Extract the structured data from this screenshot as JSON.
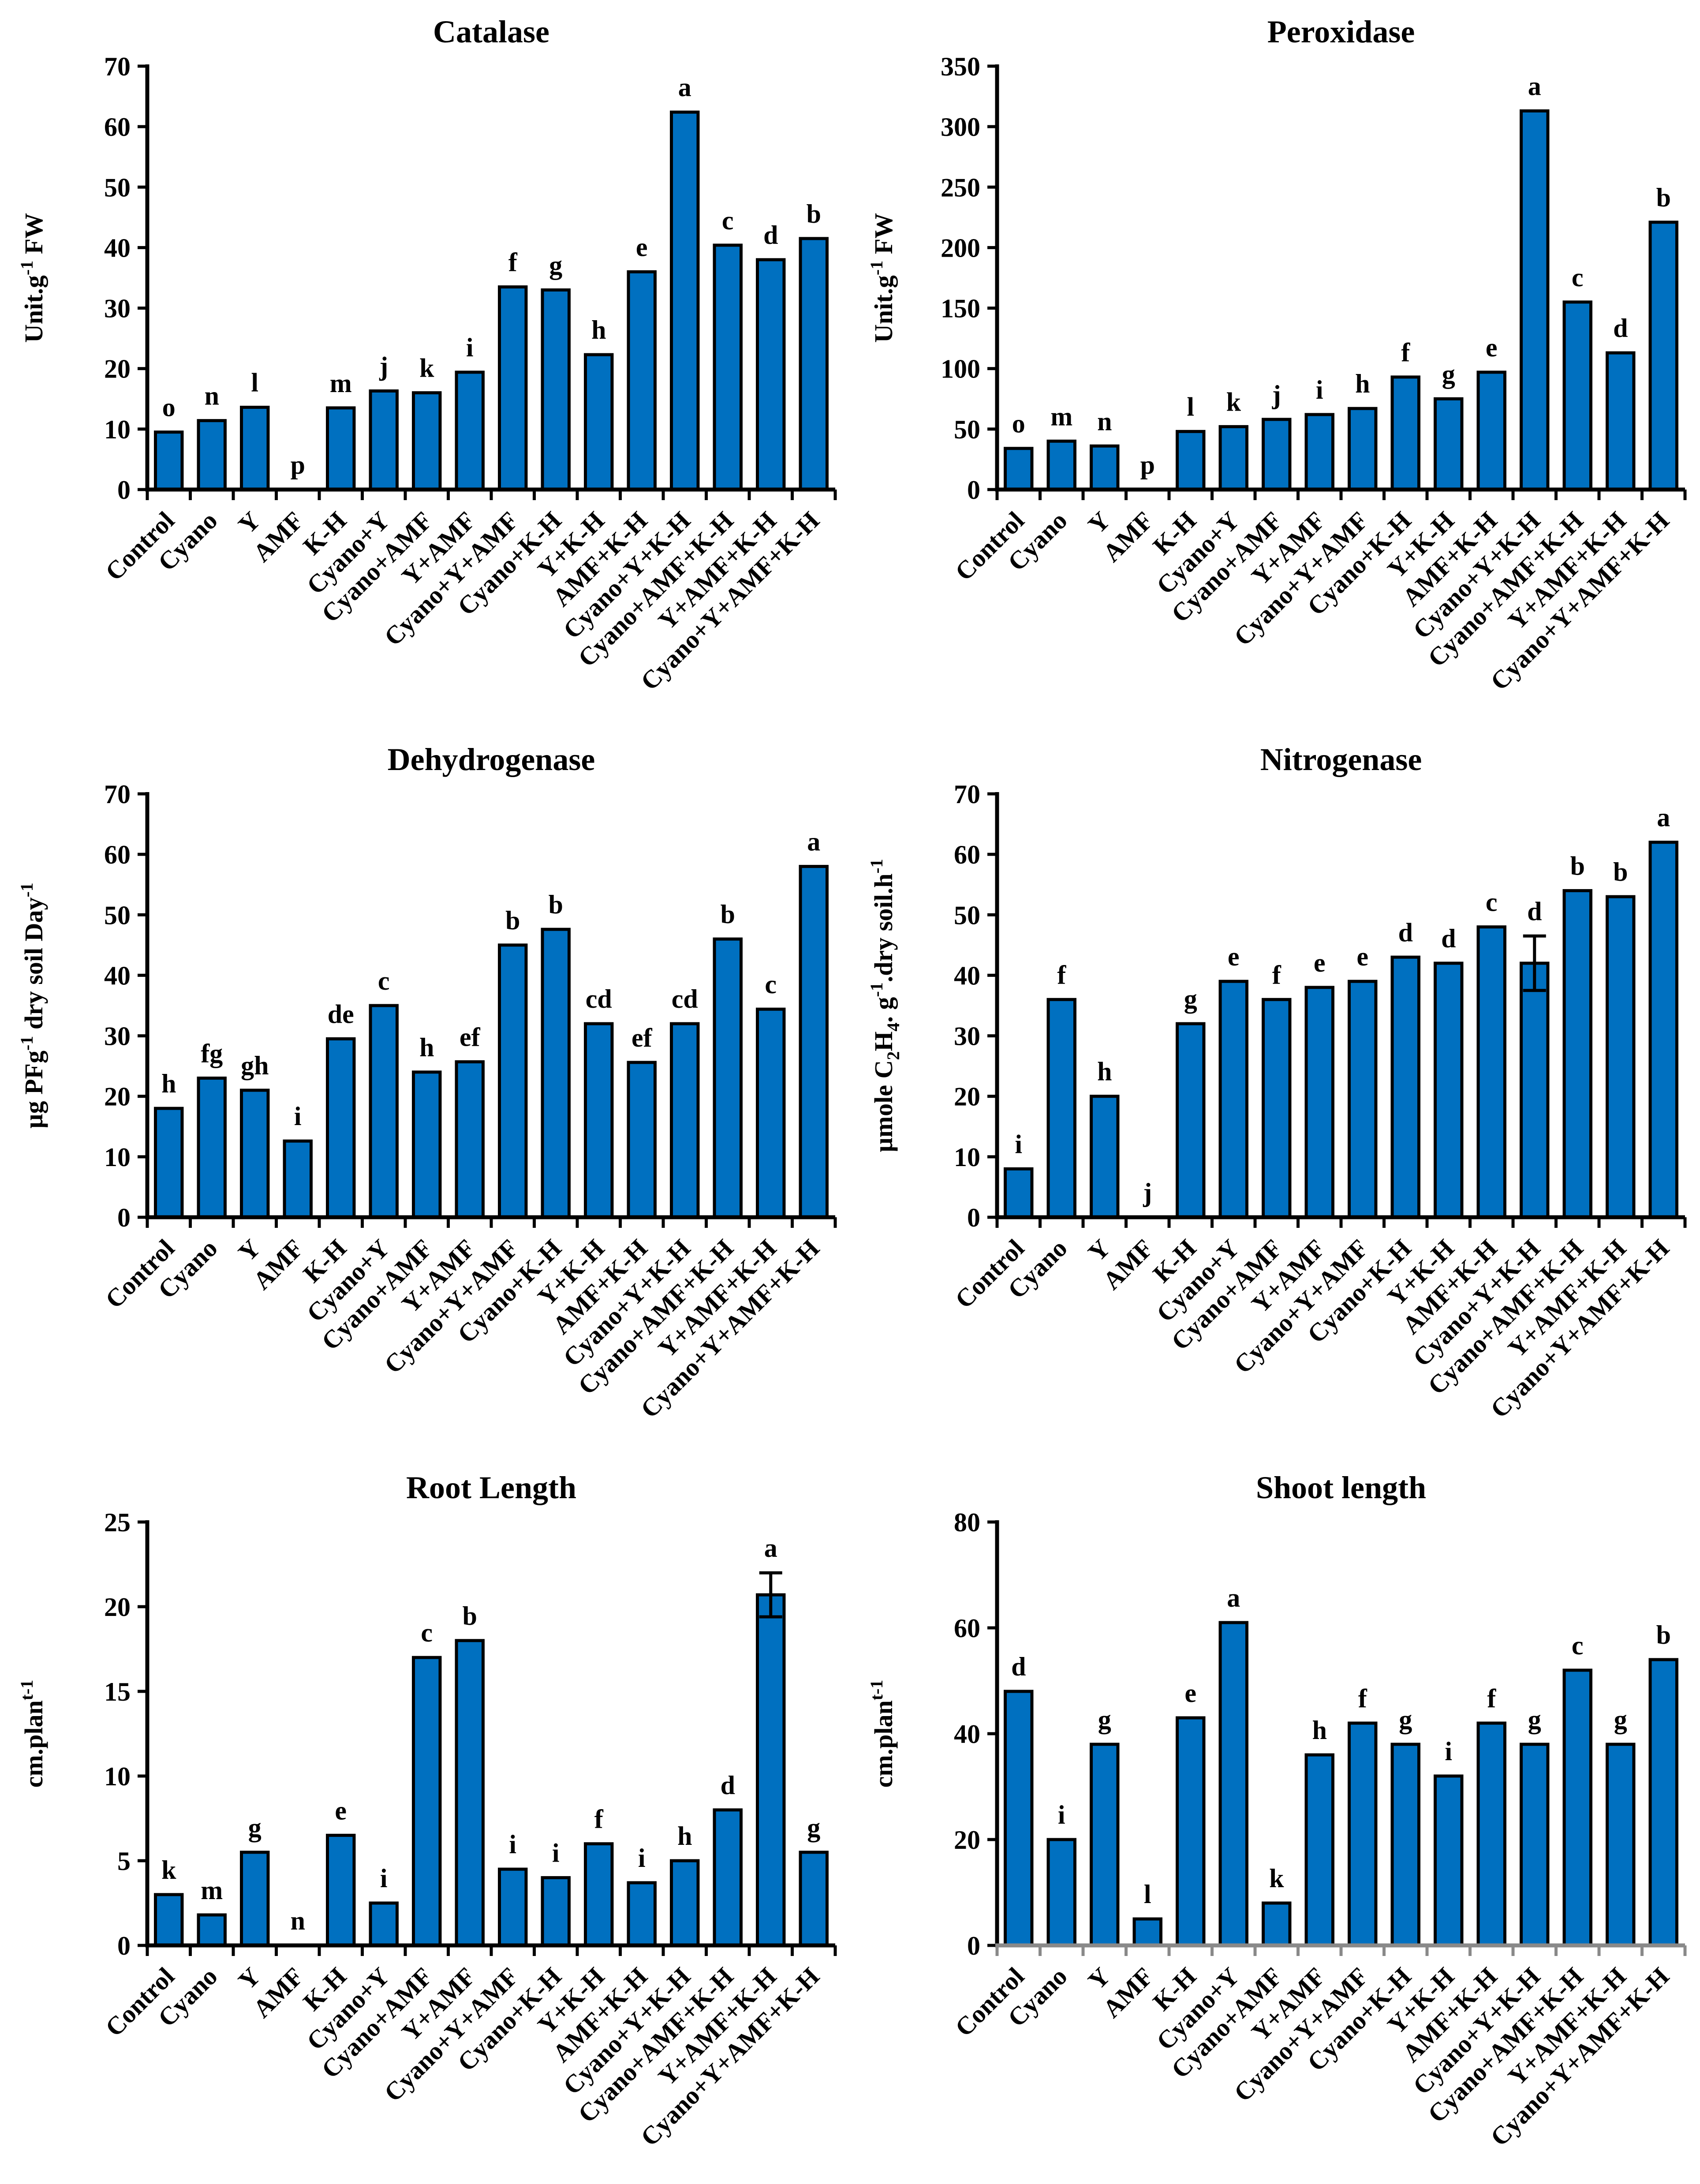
{
  "style": {
    "background": "#FFFFFF",
    "bar_fill": "#0070C0",
    "bar_stroke": "#000000",
    "axis_color": "#000000",
    "font_color": "#000000",
    "shoot_x_axis_color": "#898989"
  },
  "chart_data": [
    {
      "type": "bar",
      "title": "Catalase",
      "ylabel": "Unit.g⁻¹ FW",
      "ylabel_segments": [
        {
          "text": "Unit.g"
        },
        {
          "text": "-1",
          "style": "sup"
        },
        {
          "text": " FW"
        }
      ],
      "ylim": [
        0,
        70
      ],
      "ytick_step": 10,
      "grid": false,
      "x_axis_color": "#000000",
      "categories": [
        "Control",
        "Cyano",
        "Y",
        "AMF",
        "K-H",
        "Cyano+Y",
        "Cyano+AMF",
        "Y+AMF",
        "Cyano+Y+AMF",
        "Cyano+K-H",
        "Y+K-H",
        "AMF+K-H",
        "Cyano+Y+K-H",
        "Cyano+AMF+K-H",
        "Y+AMF+K-H",
        "Cyano+Y+AMF+K-H"
      ],
      "values": [
        9.5,
        11.4,
        13.6,
        0,
        13.5,
        16.3,
        16.0,
        19.4,
        33.5,
        33.0,
        22.3,
        36.0,
        62.4,
        40.4,
        38.0,
        41.5
      ],
      "sig_letters": [
        "o",
        "n",
        "l",
        "p",
        "m",
        "j",
        "k",
        "i",
        "f",
        "g",
        "h",
        "e",
        "a",
        "c",
        "d",
        "b"
      ],
      "errors": [
        0,
        0,
        0,
        0,
        0,
        0,
        0,
        0,
        0,
        0,
        0,
        0,
        0,
        0,
        0,
        0
      ]
    },
    {
      "type": "bar",
      "title": "Peroxidase",
      "ylabel": "Unit.g⁻¹ FW",
      "ylabel_segments": [
        {
          "text": "Unit.g"
        },
        {
          "text": "-1",
          "style": "sup"
        },
        {
          "text": " FW"
        }
      ],
      "ylim": [
        0,
        350
      ],
      "ytick_step": 50,
      "grid": false,
      "x_axis_color": "#000000",
      "categories": [
        "Control",
        "Cyano",
        "Y",
        "AMF",
        "K-H",
        "Cyano+Y",
        "Cyano+AMF",
        "Y+AMF",
        "Cyano+Y+AMF",
        "Cyano+K-H",
        "Y+K-H",
        "AMF+K-H",
        "Cyano+Y+K-H",
        "Cyano+AMF+K-H",
        "Y+AMF+K-H",
        "Cyano+Y+AMF+K-H"
      ],
      "values": [
        34,
        40,
        36,
        0,
        48,
        52,
        58,
        62,
        67,
        93,
        75,
        97,
        313,
        155,
        113,
        221
      ],
      "sig_letters": [
        "o",
        "m",
        "n",
        "p",
        "l",
        "k",
        "j",
        "i",
        "h",
        "f",
        "g",
        "e",
        "a",
        "c",
        "d",
        "b"
      ],
      "errors": [
        0,
        0,
        0,
        0,
        0,
        0,
        0,
        0,
        0,
        0,
        0,
        0,
        0,
        0,
        0,
        0
      ]
    },
    {
      "type": "bar",
      "title": "Dehydrogenase",
      "ylabel": "µg PFg⁻¹ dry soil Day⁻¹",
      "ylabel_segments": [
        {
          "text": "µg PFg"
        },
        {
          "text": "-1",
          "style": "sup"
        },
        {
          "text": " dry soil Day"
        },
        {
          "text": "-1",
          "style": "sup"
        }
      ],
      "ylim": [
        0,
        70
      ],
      "ytick_step": 10,
      "grid": false,
      "x_axis_color": "#000000",
      "categories": [
        "Control",
        "Cyano",
        "Y",
        "AMF",
        "K-H",
        "Cyano+Y",
        "Cyano+AMF",
        "Y+AMF",
        "Cyano+Y+AMF",
        "Cyano+K-H",
        "Y+K-H",
        "AMF+K-H",
        "Cyano+Y+K-H",
        "Cyano+AMF+K-H",
        "Y+AMF+K-H",
        "Cyano+Y+AMF+K-H"
      ],
      "values": [
        18,
        23,
        21,
        12.6,
        29.5,
        35,
        24,
        25.7,
        45,
        47.6,
        32,
        25.6,
        32,
        46,
        34.4,
        58
      ],
      "sig_letters": [
        "h",
        "fg",
        "gh",
        "i",
        "de",
        "c",
        "h",
        "ef",
        "b",
        "b",
        "cd",
        "ef",
        "cd",
        "b",
        "c",
        "a"
      ],
      "errors": [
        0,
        0,
        0,
        0,
        0,
        0,
        0,
        0,
        0,
        0,
        0,
        0,
        0,
        0,
        0,
        0
      ]
    },
    {
      "type": "bar",
      "title": "Nitrogenase",
      "ylabel": "µmole C₂H₄. g⁻¹.dry soil.h⁻¹",
      "ylabel_segments": [
        {
          "text": "µmole C"
        },
        {
          "text": "2",
          "style": "sub"
        },
        {
          "text": "H"
        },
        {
          "text": "4",
          "style": "sub"
        },
        {
          "text": ". g"
        },
        {
          "text": "-1",
          "style": "sup"
        },
        {
          "text": ".dry soil.h"
        },
        {
          "text": "-1",
          "style": "sup"
        }
      ],
      "ylim": [
        0,
        70
      ],
      "ytick_step": 10,
      "grid": false,
      "x_axis_color": "#000000",
      "categories": [
        "Control",
        "Cyano",
        "Y",
        "AMF",
        "K-H",
        "Cyano+Y",
        "Cyano+AMF",
        "Y+AMF",
        "Cyano+Y+AMF",
        "Cyano+K-H",
        "Y+K-H",
        "AMF+K-H",
        "Cyano+Y+K-H",
        "Cyano+AMF+K-H",
        "Y+AMF+K-H",
        "Cyano+Y+AMF+K-H"
      ],
      "values": [
        8,
        36,
        20,
        0,
        32,
        39,
        36,
        38,
        39,
        43,
        42,
        48,
        42,
        54,
        53,
        62
      ],
      "sig_letters": [
        "i",
        "f",
        "h",
        "j",
        "g",
        "e",
        "f",
        "e",
        "e",
        "d",
        "d",
        "c",
        "d",
        "b",
        "b",
        "a"
      ],
      "errors": [
        0,
        0,
        0,
        0,
        0,
        0,
        0,
        0,
        0,
        0,
        0,
        0,
        4.5,
        0,
        0,
        0
      ]
    },
    {
      "type": "bar",
      "title": "Root Length",
      "ylabel": "cm.planᵗ⁻¹",
      "ylabel_segments": [
        {
          "text": "cm.plan"
        },
        {
          "text": "t-1",
          "style": "sup"
        }
      ],
      "ylim": [
        0,
        25
      ],
      "ytick_step": 5,
      "grid": false,
      "x_axis_color": "#000000",
      "categories": [
        "Control",
        "Cyano",
        "Y",
        "AMF",
        "K-H",
        "Cyano+Y",
        "Cyano+AMF",
        "Y+AMF",
        "Cyano+Y+AMF",
        "Cyano+K-H",
        "Y+K-H",
        "AMF+K-H",
        "Cyano+Y+K-H",
        "Cyano+AMF+K-H",
        "Y+AMF+K-H",
        "Cyano+Y+AMF+K-H"
      ],
      "values": [
        3.0,
        1.8,
        5.5,
        0,
        6.5,
        2.5,
        17.0,
        18.0,
        4.5,
        4.0,
        6.0,
        3.7,
        5.0,
        8.0,
        20.7,
        5.5
      ],
      "sig_letters": [
        "k",
        "m",
        "g",
        "n",
        "e",
        "i",
        "c",
        "b",
        "i",
        "i",
        "f",
        "i",
        "h",
        "d",
        "a",
        "g"
      ],
      "errors": [
        0,
        0,
        0,
        0,
        0,
        0,
        0,
        0,
        0,
        0,
        0,
        0,
        0,
        0,
        1.3,
        0
      ]
    },
    {
      "type": "bar",
      "title": "Shoot length",
      "ylabel": "cm.planᵗ⁻¹",
      "ylabel_segments": [
        {
          "text": "cm.plan"
        },
        {
          "text": "t-1",
          "style": "sup"
        }
      ],
      "ylim": [
        0,
        80
      ],
      "ytick_step": 20,
      "grid": false,
      "x_axis_color": "#898989",
      "categories": [
        "Control",
        "Cyano",
        "Y",
        "AMF",
        "K-H",
        "Cyano+Y",
        "Cyano+AMF",
        "Y+AMF",
        "Cyano+Y+AMF",
        "Cyano+K-H",
        "Y+K-H",
        "AMF+K-H",
        "Cyano+Y+K-H",
        "Cyano+AMF+K-H",
        "Y+AMF+K-H",
        "Cyano+Y+AMF+K-H"
      ],
      "values": [
        48,
        20,
        38,
        5,
        43,
        61,
        8,
        36,
        42,
        38,
        32,
        42,
        38,
        52,
        38,
        54
      ],
      "sig_letters": [
        "d",
        "i",
        "g",
        "l",
        "e",
        "a",
        "k",
        "h",
        "f",
        "g",
        "i",
        "f",
        "g",
        "c",
        "g",
        "b"
      ],
      "errors": [
        0,
        0,
        0,
        0,
        0,
        0,
        0,
        0,
        0,
        0,
        0,
        0,
        0,
        0,
        0,
        0
      ]
    }
  ]
}
